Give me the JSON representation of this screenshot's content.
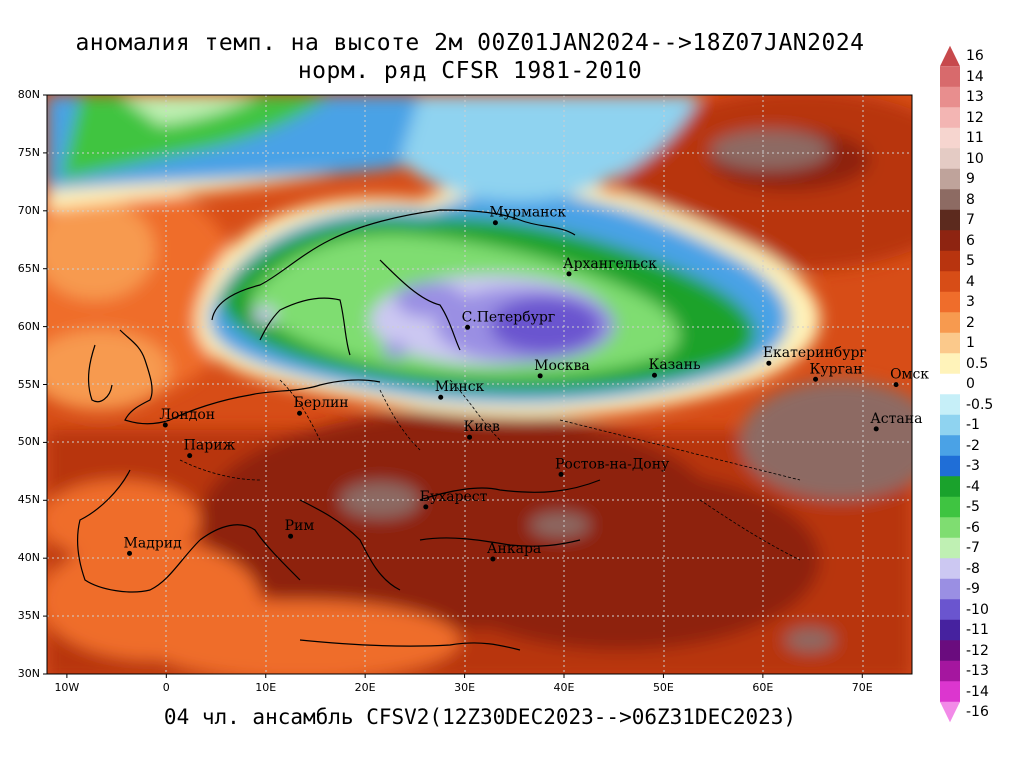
{
  "title_line1": "аномалия темп. на высоте 2м 00Z01JAN2024-->18Z07JAN2024",
  "title_line2": "норм. ряд CFSR 1981-2010",
  "footer": "04 чл. ансамбль CFSV2(12Z30DEC2023-->06Z31DEC2023)",
  "lat_labels": [
    "80N",
    "75N",
    "70N",
    "65N",
    "60N",
    "55N",
    "50N",
    "45N",
    "40N",
    "35N",
    "30N"
  ],
  "lon_labels": [
    "10W",
    "0",
    "10E",
    "20E",
    "30E",
    "40E",
    "50E",
    "60E",
    "70E"
  ],
  "colorbar": {
    "labels": [
      "16",
      "14",
      "13",
      "12",
      "11",
      "10",
      "9",
      "8",
      "7",
      "6",
      "5",
      "4",
      "3",
      "2",
      "1",
      "0.5",
      "0",
      "-0.5",
      "-1",
      "-2",
      "-3",
      "-4",
      "-5",
      "-6",
      "-7",
      "-8",
      "-9",
      "-10",
      "-11",
      "-12",
      "-13",
      "-14",
      "-16"
    ],
    "colors": [
      "#c7494c",
      "#d86a6c",
      "#e88e8e",
      "#f3b5b3",
      "#f6d5cf",
      "#e4cbc4",
      "#bfa39b",
      "#8d6b63",
      "#5c2a1e",
      "#8e2411",
      "#b8340f",
      "#d74d17",
      "#ef6d2b",
      "#f79a4f",
      "#fbc98b",
      "#fff3ba",
      "#ffffff",
      "#c6eff8",
      "#8fd3f0",
      "#4aa2e6",
      "#1f6ed7",
      "#1aa22c",
      "#3fc441",
      "#7fdd71",
      "#bff0b3",
      "#ccc8f2",
      "#9a8fe3",
      "#6a55cf",
      "#46229f",
      "#6a0c7e",
      "#a5169f",
      "#dc36cf",
      "#f28ae8"
    ]
  },
  "cities": [
    {
      "name": "Мурманск",
      "lon": 33.1,
      "lat": 68.97
    },
    {
      "name": "Архангельск",
      "lon": 40.5,
      "lat": 64.55
    },
    {
      "name": "С.Петербург",
      "lon": 30.3,
      "lat": 59.94
    },
    {
      "name": "Москва",
      "lon": 37.6,
      "lat": 55.75
    },
    {
      "name": "Казань",
      "lon": 49.1,
      "lat": 55.8
    },
    {
      "name": "Екатеринбург",
      "lon": 60.6,
      "lat": 56.84
    },
    {
      "name": "Курган",
      "lon": 65.3,
      "lat": 55.45
    },
    {
      "name": "Омск",
      "lon": 73.4,
      "lat": 54.99
    },
    {
      "name": "Астана",
      "lon": 71.4,
      "lat": 51.17
    },
    {
      "name": "Минск",
      "lon": 27.6,
      "lat": 53.9
    },
    {
      "name": "Киев",
      "lon": 30.5,
      "lat": 50.45
    },
    {
      "name": "Ростов-на-Дону",
      "lon": 39.7,
      "lat": 47.24
    },
    {
      "name": "Берлин",
      "lon": 13.4,
      "lat": 52.52
    },
    {
      "name": "Лондон",
      "lon": -0.1,
      "lat": 51.5
    },
    {
      "name": "Париж",
      "lon": 2.35,
      "lat": 48.86
    },
    {
      "name": "Бухарест",
      "lon": 26.1,
      "lat": 44.43
    },
    {
      "name": "Рим",
      "lon": 12.5,
      "lat": 41.9
    },
    {
      "name": "Мадрид",
      "lon": -3.7,
      "lat": 40.42
    },
    {
      "name": "Анкара",
      "lon": 32.85,
      "lat": 39.93
    }
  ]
}
